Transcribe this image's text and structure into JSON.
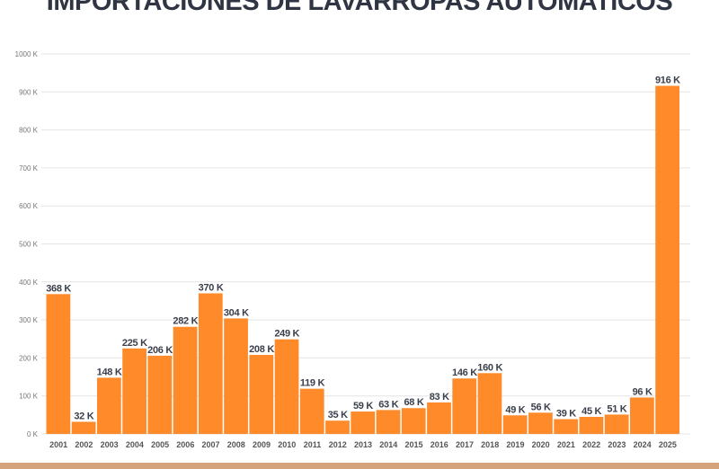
{
  "chart_data": {
    "type": "bar",
    "title": "IMPORTACIONES DE LAVARROPAS AUTOMATICOS",
    "xlabel": "",
    "ylabel": "",
    "categories": [
      "2001",
      "2002",
      "2003",
      "2004",
      "2005",
      "2006",
      "2007",
      "2008",
      "2009",
      "2010",
      "2011",
      "2012",
      "2013",
      "2014",
      "2015",
      "2016",
      "2017",
      "2018",
      "2019",
      "2020",
      "2021",
      "2022",
      "2023",
      "2024",
      "2025"
    ],
    "values": [
      368,
      32,
      148,
      225,
      206,
      282,
      370,
      304,
      208,
      249,
      119,
      35,
      59,
      63,
      68,
      83,
      146,
      160,
      49,
      56,
      39,
      45,
      51,
      96,
      916
    ],
    "data_labels": [
      "368 K",
      "32 K",
      "148 K",
      "225 K",
      "206 K",
      "282 K",
      "370 K",
      "304 K",
      "208 K",
      "249 K",
      "119 K",
      "35 K",
      "59 K",
      "63 K",
      "68 K",
      "83 K",
      "146 K",
      "160 K",
      "49 K",
      "56 K",
      "39 K",
      "45 K",
      "51 K",
      "96 K",
      "916 K"
    ],
    "unit": "K",
    "ylim": [
      0,
      1000
    ],
    "yticks": [
      "0 K",
      "100 K",
      "200 K",
      "300 K",
      "400 K",
      "500 K",
      "600 K",
      "700 K",
      "800 K",
      "900 K",
      "1000 K"
    ],
    "grid": true,
    "bar_color": "#ff8a2a",
    "bottom_band_color": "#d4a37c"
  }
}
